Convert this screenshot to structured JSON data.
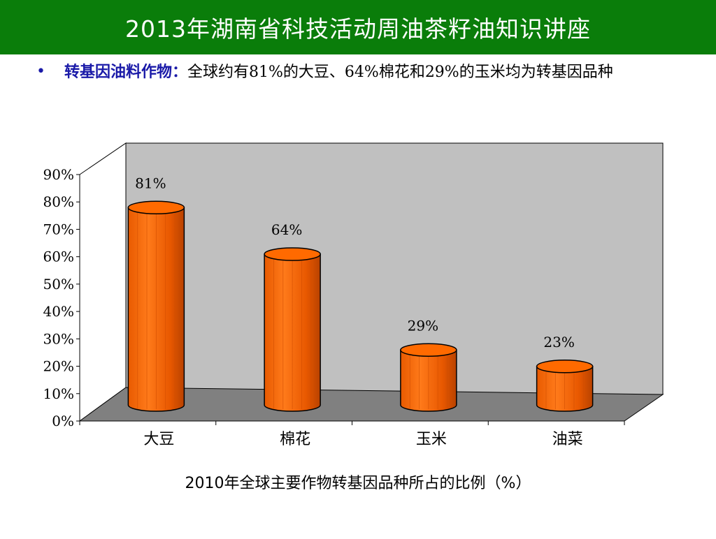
{
  "header": {
    "title": "2013年湖南省科技活动周油茶籽油知识讲座",
    "background_color": "#0a7d0a"
  },
  "bullet": {
    "key": "转基因油料作物：",
    "text": "全球约有81%的大豆、64%棉花和29%的玉米均为转基因品种"
  },
  "chart_data": {
    "type": "bar",
    "style": "3d-cylinder",
    "categories": [
      "大豆",
      "棉花",
      "玉米",
      "油菜"
    ],
    "values": [
      81,
      64,
      29,
      23
    ],
    "data_labels": [
      "81%",
      "64%",
      "29%",
      "23%"
    ],
    "yticks": [
      "0%",
      "10%",
      "20%",
      "30%",
      "40%",
      "50%",
      "60%",
      "70%",
      "80%",
      "90%"
    ],
    "ylim": [
      0,
      90
    ],
    "title": "2010年全球主要作物转基因品种所占的比例（%）",
    "xlabel": "",
    "ylabel": "",
    "grid": false,
    "legend": "none",
    "bar_color": "#ff6a00",
    "back_wall_color": "#c0c0c0",
    "floor_color": "#808080"
  }
}
